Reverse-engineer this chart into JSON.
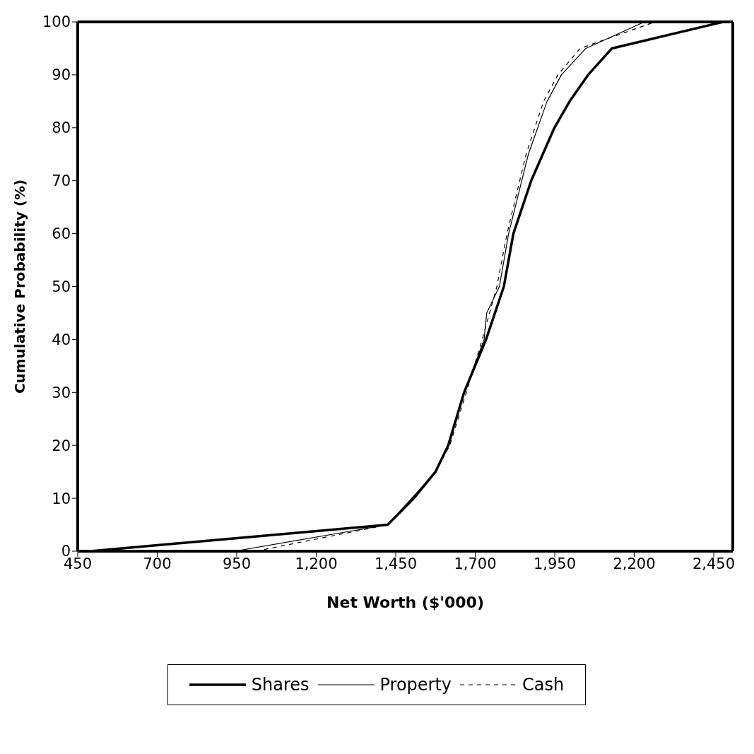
{
  "chart_data": {
    "type": "line",
    "xlabel": "Net Worth ($'000)",
    "ylabel": "Cumulative Probability (%)",
    "xlim": [
      450,
      2510
    ],
    "ylim": [
      0,
      100
    ],
    "xticks": [
      450,
      700,
      950,
      {
        "value": 1200,
        "label": "1,200"
      },
      {
        "value": 1450,
        "label": "1,450"
      },
      {
        "value": 1700,
        "label": "1,700"
      },
      {
        "value": 1950,
        "label": "1,950"
      },
      {
        "value": 2200,
        "label": "2,200"
      },
      {
        "value": 2450,
        "label": "2,450"
      }
    ],
    "yticks": [
      0,
      10,
      20,
      30,
      40,
      50,
      60,
      70,
      80,
      90,
      100
    ],
    "grid": false,
    "legend": "bottom",
    "marker": "none",
    "series": [
      {
        "name": "Shares",
        "color": "#000000",
        "line_style": "solid",
        "x": [
          490,
          1425,
          1507,
          1575,
          1615,
          1665,
          1734,
          1790,
          1820,
          1876,
          1949,
          1997,
          2055,
          2130,
          2480
        ],
        "values": [
          0,
          5,
          10,
          15,
          20,
          30,
          40,
          50,
          60,
          70,
          80,
          85,
          90,
          95,
          100
        ]
      },
      {
        "name": "Property",
        "color": "#000000",
        "line_style": "solid",
        "x": [
          943,
          1425,
          1500,
          1575,
          1615,
          1665,
          1728,
          1736,
          1776,
          1805,
          1867,
          1926,
          1971,
          2048,
          2232
        ],
        "values": [
          0,
          5,
          10,
          15,
          20,
          30,
          40,
          45,
          50,
          60,
          75,
          85,
          90,
          95,
          100
        ]
      },
      {
        "name": "Cash",
        "color": "#000000",
        "line_style": "dashed",
        "x": [
          1010,
          1425,
          1505,
          1575,
          1620,
          1672,
          1722,
          1768,
          1800,
          1860,
          1915,
          1960,
          2030,
          2265
        ],
        "values": [
          0,
          5,
          10,
          15,
          20,
          30,
          40,
          50,
          60,
          75,
          85,
          90,
          95,
          100
        ]
      }
    ]
  }
}
